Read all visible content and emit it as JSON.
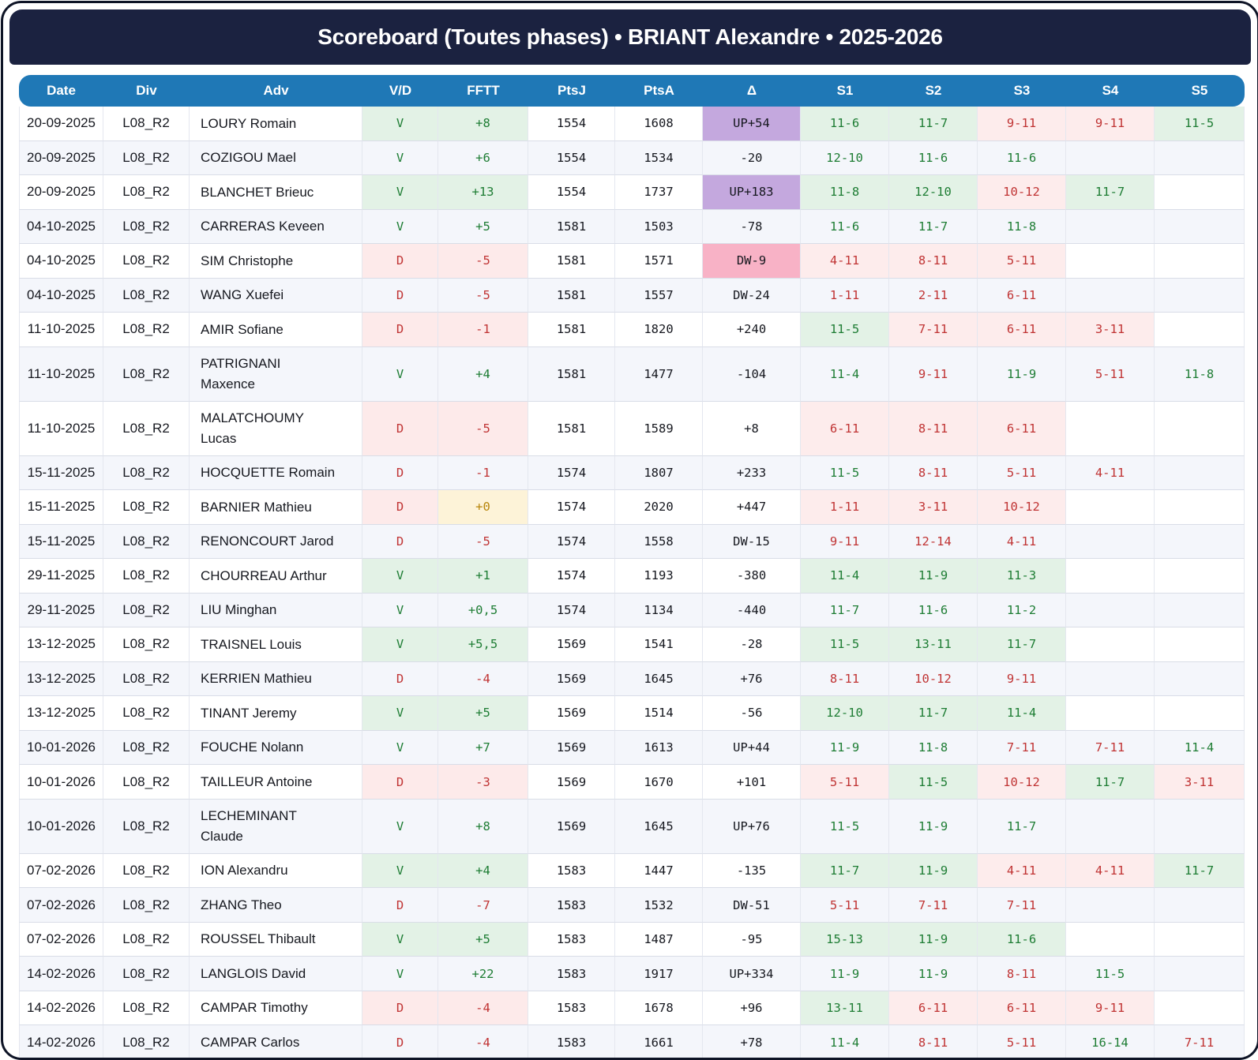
{
  "page_title": "Scoreboard (Toutes phases) • BRIANT Alexandre • 2025-2026",
  "colors": {
    "title_bar_bg": "#1b2240",
    "header_bg": "#1f78b6",
    "stripe_bg": "#f4f6fb",
    "win_bg": "#e3f2e6",
    "win_text": "#1e7d34",
    "loss_bg": "#fdeaea",
    "loss_text": "#c03434",
    "set_loss_bg": "#fdecec",
    "up_bg": "#c4a8de",
    "down_bg": "#f8b2c6",
    "zero_bg": "#fdf3d8",
    "zero_text": "#b8860b"
  },
  "chart_data": {
    "type": "table",
    "title": "Scoreboard (Toutes phases) • BRIANT Alexandre • 2025-2026",
    "columns": [
      {
        "key": "date",
        "label": "Date"
      },
      {
        "key": "div",
        "label": "Div"
      },
      {
        "key": "adv",
        "label": "Adv"
      },
      {
        "key": "vd",
        "label": "V/D"
      },
      {
        "key": "fftt",
        "label": "FFTT"
      },
      {
        "key": "ptsj",
        "label": "PtsJ"
      },
      {
        "key": "ptsa",
        "label": "PtsA"
      },
      {
        "key": "delta",
        "label": "Δ"
      },
      {
        "key": "s1",
        "label": "S1"
      },
      {
        "key": "s2",
        "label": "S2"
      },
      {
        "key": "s3",
        "label": "S3"
      },
      {
        "key": "s4",
        "label": "S4"
      },
      {
        "key": "s5",
        "label": "S5"
      }
    ],
    "rows": [
      {
        "date": "20-09-2025",
        "div": "L08_R2",
        "adv": "LOURY Romain",
        "vd": "V",
        "fftt": "+8",
        "ptsj": "1554",
        "ptsa": "1608",
        "delta": "UP+54",
        "sets": [
          "11-6",
          "11-7",
          "9-11",
          "9-11",
          "11-5"
        ]
      },
      {
        "date": "20-09-2025",
        "div": "L08_R2",
        "adv": "COZIGOU Mael",
        "vd": "V",
        "fftt": "+6",
        "ptsj": "1554",
        "ptsa": "1534",
        "delta": "-20",
        "sets": [
          "12-10",
          "11-6",
          "11-6",
          "",
          ""
        ]
      },
      {
        "date": "20-09-2025",
        "div": "L08_R2",
        "adv": "BLANCHET Brieuc",
        "vd": "V",
        "fftt": "+13",
        "ptsj": "1554",
        "ptsa": "1737",
        "delta": "UP+183",
        "sets": [
          "11-8",
          "12-10",
          "10-12",
          "11-7",
          ""
        ]
      },
      {
        "date": "04-10-2025",
        "div": "L08_R2",
        "adv": "CARRERAS Keveen",
        "vd": "V",
        "fftt": "+5",
        "ptsj": "1581",
        "ptsa": "1503",
        "delta": "-78",
        "sets": [
          "11-6",
          "11-7",
          "11-8",
          "",
          ""
        ]
      },
      {
        "date": "04-10-2025",
        "div": "L08_R2",
        "adv": "SIM Christophe",
        "vd": "D",
        "fftt": "-5",
        "ptsj": "1581",
        "ptsa": "1571",
        "delta": "DW-9",
        "sets": [
          "4-11",
          "8-11",
          "5-11",
          "",
          ""
        ]
      },
      {
        "date": "04-10-2025",
        "div": "L08_R2",
        "adv": "WANG Xuefei",
        "vd": "D",
        "fftt": "-5",
        "ptsj": "1581",
        "ptsa": "1557",
        "delta": "DW-24",
        "sets": [
          "1-11",
          "2-11",
          "6-11",
          "",
          ""
        ]
      },
      {
        "date": "11-10-2025",
        "div": "L08_R2",
        "adv": "AMIR Sofiane",
        "vd": "D",
        "fftt": "-1",
        "ptsj": "1581",
        "ptsa": "1820",
        "delta": "+240",
        "sets": [
          "11-5",
          "7-11",
          "6-11",
          "3-11",
          ""
        ]
      },
      {
        "date": "11-10-2025",
        "div": "L08_R2",
        "adv": "PATRIGNANI Maxence",
        "vd": "V",
        "fftt": "+4",
        "ptsj": "1581",
        "ptsa": "1477",
        "delta": "-104",
        "sets": [
          "11-4",
          "9-11",
          "11-9",
          "5-11",
          "11-8"
        ]
      },
      {
        "date": "11-10-2025",
        "div": "L08_R2",
        "adv": "MALATCHOUMY Lucas",
        "vd": "D",
        "fftt": "-5",
        "ptsj": "1581",
        "ptsa": "1589",
        "delta": "+8",
        "sets": [
          "6-11",
          "8-11",
          "6-11",
          "",
          ""
        ]
      },
      {
        "date": "15-11-2025",
        "div": "L08_R2",
        "adv": "HOCQUETTE Romain",
        "vd": "D",
        "fftt": "-1",
        "ptsj": "1574",
        "ptsa": "1807",
        "delta": "+233",
        "sets": [
          "11-5",
          "8-11",
          "5-11",
          "4-11",
          ""
        ]
      },
      {
        "date": "15-11-2025",
        "div": "L08_R2",
        "adv": "BARNIER Mathieu",
        "vd": "D",
        "fftt": "+0",
        "ptsj": "1574",
        "ptsa": "2020",
        "delta": "+447",
        "sets": [
          "1-11",
          "3-11",
          "10-12",
          "",
          ""
        ]
      },
      {
        "date": "15-11-2025",
        "div": "L08_R2",
        "adv": "RENONCOURT Jarod",
        "vd": "D",
        "fftt": "-5",
        "ptsj": "1574",
        "ptsa": "1558",
        "delta": "DW-15",
        "sets": [
          "9-11",
          "12-14",
          "4-11",
          "",
          ""
        ]
      },
      {
        "date": "29-11-2025",
        "div": "L08_R2",
        "adv": "CHOURREAU Arthur",
        "vd": "V",
        "fftt": "+1",
        "ptsj": "1574",
        "ptsa": "1193",
        "delta": "-380",
        "sets": [
          "11-4",
          "11-9",
          "11-3",
          "",
          ""
        ]
      },
      {
        "date": "29-11-2025",
        "div": "L08_R2",
        "adv": "LIU Minghan",
        "vd": "V",
        "fftt": "+0,5",
        "ptsj": "1574",
        "ptsa": "1134",
        "delta": "-440",
        "sets": [
          "11-7",
          "11-6",
          "11-2",
          "",
          ""
        ]
      },
      {
        "date": "13-12-2025",
        "div": "L08_R2",
        "adv": "TRAISNEL Louis",
        "vd": "V",
        "fftt": "+5,5",
        "ptsj": "1569",
        "ptsa": "1541",
        "delta": "-28",
        "sets": [
          "11-5",
          "13-11",
          "11-7",
          "",
          ""
        ]
      },
      {
        "date": "13-12-2025",
        "div": "L08_R2",
        "adv": "KERRIEN Mathieu",
        "vd": "D",
        "fftt": "-4",
        "ptsj": "1569",
        "ptsa": "1645",
        "delta": "+76",
        "sets": [
          "8-11",
          "10-12",
          "9-11",
          "",
          ""
        ]
      },
      {
        "date": "13-12-2025",
        "div": "L08_R2",
        "adv": "TINANT Jeremy",
        "vd": "V",
        "fftt": "+5",
        "ptsj": "1569",
        "ptsa": "1514",
        "delta": "-56",
        "sets": [
          "12-10",
          "11-7",
          "11-4",
          "",
          ""
        ]
      },
      {
        "date": "10-01-2026",
        "div": "L08_R2",
        "adv": "FOUCHE Nolann",
        "vd": "V",
        "fftt": "+7",
        "ptsj": "1569",
        "ptsa": "1613",
        "delta": "UP+44",
        "sets": [
          "11-9",
          "11-8",
          "7-11",
          "7-11",
          "11-4"
        ]
      },
      {
        "date": "10-01-2026",
        "div": "L08_R2",
        "adv": "TAILLEUR Antoine",
        "vd": "D",
        "fftt": "-3",
        "ptsj": "1569",
        "ptsa": "1670",
        "delta": "+101",
        "sets": [
          "5-11",
          "11-5",
          "10-12",
          "11-7",
          "3-11"
        ]
      },
      {
        "date": "10-01-2026",
        "div": "L08_R2",
        "adv": "LECHEMINANT Claude",
        "vd": "V",
        "fftt": "+8",
        "ptsj": "1569",
        "ptsa": "1645",
        "delta": "UP+76",
        "sets": [
          "11-5",
          "11-9",
          "11-7",
          "",
          ""
        ]
      },
      {
        "date": "07-02-2026",
        "div": "L08_R2",
        "adv": "ION Alexandru",
        "vd": "V",
        "fftt": "+4",
        "ptsj": "1583",
        "ptsa": "1447",
        "delta": "-135",
        "sets": [
          "11-7",
          "11-9",
          "4-11",
          "4-11",
          "11-7"
        ]
      },
      {
        "date": "07-02-2026",
        "div": "L08_R2",
        "adv": "ZHANG Theo",
        "vd": "D",
        "fftt": "-7",
        "ptsj": "1583",
        "ptsa": "1532",
        "delta": "DW-51",
        "sets": [
          "5-11",
          "7-11",
          "7-11",
          "",
          ""
        ]
      },
      {
        "date": "07-02-2026",
        "div": "L08_R2",
        "adv": "ROUSSEL Thibault",
        "vd": "V",
        "fftt": "+5",
        "ptsj": "1583",
        "ptsa": "1487",
        "delta": "-95",
        "sets": [
          "15-13",
          "11-9",
          "11-6",
          "",
          ""
        ]
      },
      {
        "date": "14-02-2026",
        "div": "L08_R2",
        "adv": "LANGLOIS David",
        "vd": "V",
        "fftt": "+22",
        "ptsj": "1583",
        "ptsa": "1917",
        "delta": "UP+334",
        "sets": [
          "11-9",
          "11-9",
          "8-11",
          "11-5",
          ""
        ]
      },
      {
        "date": "14-02-2026",
        "div": "L08_R2",
        "adv": "CAMPAR Timothy",
        "vd": "D",
        "fftt": "-4",
        "ptsj": "1583",
        "ptsa": "1678",
        "delta": "+96",
        "sets": [
          "13-11",
          "6-11",
          "6-11",
          "9-11",
          ""
        ]
      },
      {
        "date": "14-02-2026",
        "div": "L08_R2",
        "adv": "CAMPAR Carlos",
        "vd": "D",
        "fftt": "-4",
        "ptsj": "1583",
        "ptsa": "1661",
        "delta": "+78",
        "sets": [
          "11-4",
          "8-11",
          "5-11",
          "16-14",
          "7-11"
        ]
      }
    ]
  }
}
